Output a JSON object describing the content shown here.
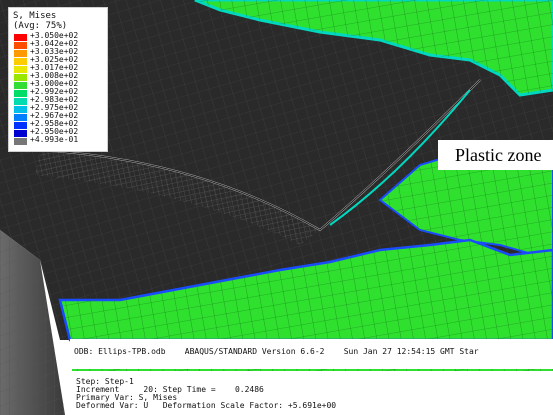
{
  "legend": {
    "title": "S, Mises",
    "subtitle": "(Avg: 75%)",
    "entries": [
      {
        "label": "+3.050e+02",
        "color": "#ff0000"
      },
      {
        "label": "+3.042e+02",
        "color": "#ff4d00"
      },
      {
        "label": "+3.033e+02",
        "color": "#ff9900"
      },
      {
        "label": "+3.025e+02",
        "color": "#ffcc00"
      },
      {
        "label": "+3.017e+02",
        "color": "#e8e800"
      },
      {
        "label": "+3.008e+02",
        "color": "#99e600"
      },
      {
        "label": "+3.000e+02",
        "color": "#33dd33"
      },
      {
        "label": "+2.992e+02",
        "color": "#00dd66"
      },
      {
        "label": "+2.983e+02",
        "color": "#00dcb0"
      },
      {
        "label": "+2.975e+02",
        "color": "#00bfe8"
      },
      {
        "label": "+2.967e+02",
        "color": "#0080ff"
      },
      {
        "label": "+2.958e+02",
        "color": "#0033ff"
      },
      {
        "label": "+2.950e+02",
        "color": "#0000d0"
      },
      {
        "label": "+4.993e-01",
        "color": "#777777"
      }
    ]
  },
  "annotation": {
    "plastic_zone": "Plastic zone"
  },
  "odb_info": {
    "line": "ODB: Ellips-TPB.odb    ABAQUS/STANDARD Version 6.6-2    Sun Jan 27 12:54:15 GMT Star"
  },
  "step_info": {
    "step": "Step: Step-1",
    "increment": "Increment     20: Step Time =    0.2486",
    "primary_var": "Primary Var: S, Mises",
    "deformed_var": "Deformed Var: U   Deformation Scale Factor: +5.691e+00"
  },
  "colors": {
    "mesh_dark": "#2a2a2a",
    "plastic_green": "#2fe02f",
    "contour_cyan": "#00d8c0",
    "contour_blue": "#1a4cff"
  }
}
